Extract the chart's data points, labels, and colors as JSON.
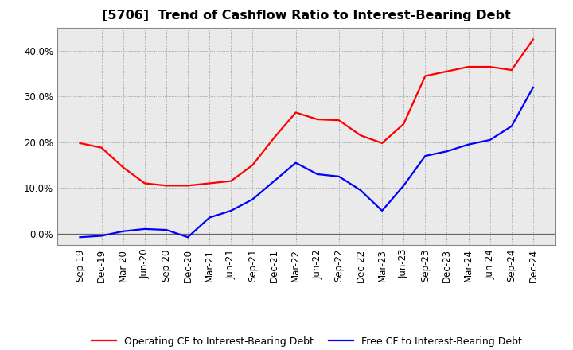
{
  "title": "[5706]  Trend of Cashflow Ratio to Interest-Bearing Debt",
  "x_labels": [
    "Sep-19",
    "Dec-19",
    "Mar-20",
    "Jun-20",
    "Sep-20",
    "Dec-20",
    "Mar-21",
    "Jun-21",
    "Sep-21",
    "Dec-21",
    "Mar-22",
    "Jun-22",
    "Sep-22",
    "Dec-22",
    "Mar-23",
    "Jun-23",
    "Sep-23",
    "Dec-23",
    "Mar-24",
    "Jun-24",
    "Sep-24",
    "Dec-24"
  ],
  "operating_cf": [
    19.8,
    18.8,
    14.5,
    11.0,
    10.5,
    10.5,
    11.0,
    11.5,
    15.0,
    21.0,
    26.5,
    25.0,
    24.8,
    21.5,
    19.8,
    24.0,
    34.5,
    35.5,
    36.5,
    36.5,
    35.8,
    42.5
  ],
  "free_cf": [
    -0.8,
    -0.5,
    0.5,
    1.0,
    0.8,
    -0.8,
    3.5,
    5.0,
    7.5,
    11.5,
    15.5,
    13.0,
    12.5,
    9.5,
    5.0,
    10.5,
    17.0,
    18.0,
    19.5,
    20.5,
    23.5,
    32.0
  ],
  "operating_cf_color": "#FF0000",
  "free_cf_color": "#0000FF",
  "operating_cf_label": "Operating CF to Interest-Bearing Debt",
  "free_cf_label": "Free CF to Interest-Bearing Debt",
  "ylim": [
    -2.5,
    45
  ],
  "yticks": [
    0.0,
    10.0,
    20.0,
    30.0,
    40.0
  ],
  "background_color": "#FFFFFF",
  "plot_bg_color": "#EAEAEA",
  "grid_color": "#888888",
  "title_fontsize": 11.5,
  "axis_fontsize": 8.5,
  "legend_fontsize": 9,
  "line_width": 1.6
}
